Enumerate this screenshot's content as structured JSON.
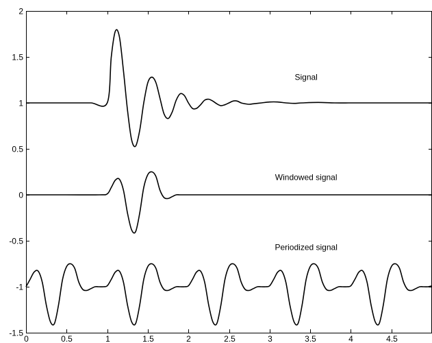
{
  "chart_data": {
    "type": "line",
    "title": "",
    "xlabel": "",
    "ylabel": "",
    "xlim": [
      0,
      5
    ],
    "ylim": [
      -1.5,
      2
    ],
    "grid": false,
    "x_ticks": [
      0,
      0.5,
      1,
      1.5,
      2,
      2.5,
      3,
      3.5,
      4,
      4.5
    ],
    "x_tick_labels": [
      "0",
      "0.5",
      "1",
      "1.5",
      "2",
      "2.5",
      "3",
      "3.5",
      "4",
      "4.5"
    ],
    "y_ticks": [
      -1.5,
      -1,
      -0.5,
      0,
      0.5,
      1,
      1.5,
      2
    ],
    "y_tick_labels": [
      "-1.5",
      "-1",
      "-0.5",
      "0",
      "0.5",
      "1",
      "1.5",
      "2"
    ],
    "annotations": [
      {
        "text": "Signal",
        "x": 3.45,
        "y": 1.25
      },
      {
        "text": "Windowed signal",
        "x": 3.45,
        "y": 0.16
      },
      {
        "text": "Periodized signal",
        "x": 3.45,
        "y": -0.6
      }
    ],
    "series": [
      {
        "x": [
          0,
          0.2,
          0.4,
          0.6,
          0.8,
          1.0,
          1.05,
          1.1,
          1.15,
          1.2,
          1.25,
          1.3,
          1.35,
          1.4,
          1.45,
          1.5,
          1.55,
          1.6,
          1.65,
          1.7,
          1.75,
          1.8,
          1.85,
          1.9,
          1.95,
          2.0,
          2.05,
          2.1,
          2.15,
          2.2,
          2.25,
          2.3,
          2.35,
          2.4,
          2.45,
          2.5,
          2.55,
          2.6,
          2.65,
          2.7,
          2.75,
          2.8,
          2.9,
          3.0,
          3.1,
          3.2,
          3.3,
          3.4,
          3.6,
          3.8,
          4.0,
          4.2,
          4.4,
          4.6,
          4.8,
          5.0
        ],
        "y": [
          1,
          1,
          1,
          1,
          1,
          1,
          1.5,
          1.78,
          1.72,
          1.35,
          0.92,
          0.6,
          0.53,
          0.7,
          1.0,
          1.22,
          1.28,
          1.22,
          1.05,
          0.88,
          0.83,
          0.9,
          1.03,
          1.1,
          1.08,
          1.0,
          0.94,
          0.94,
          0.98,
          1.03,
          1.04,
          1.02,
          0.99,
          0.97,
          0.98,
          1.0,
          1.02,
          1.02,
          1.0,
          0.99,
          0.985,
          0.99,
          1.0,
          1.01,
          1.01,
          1.0,
          0.995,
          1.0,
          1.005,
          1.0,
          1.0,
          1.0,
          1.0,
          1.0,
          1.0,
          1.0
        ]
      },
      {
        "x": [
          0,
          0.5,
          0.9,
          1.0,
          1.05,
          1.1,
          1.15,
          1.2,
          1.25,
          1.3,
          1.35,
          1.4,
          1.45,
          1.5,
          1.55,
          1.6,
          1.65,
          1.7,
          1.75,
          1.8,
          1.85,
          1.9,
          1.95,
          2.0,
          2.5,
          3.0,
          3.5,
          4.0,
          4.5,
          5.0
        ],
        "y": [
          0,
          0,
          0,
          0.01,
          0.08,
          0.16,
          0.17,
          0.05,
          -0.2,
          -0.38,
          -0.4,
          -0.2,
          0.08,
          0.22,
          0.25,
          0.2,
          0.05,
          -0.03,
          -0.04,
          -0.02,
          0.0,
          0.0,
          0.0,
          0.0,
          0,
          0,
          0,
          0,
          0,
          0
        ]
      },
      {
        "x": [
          0,
          0.05,
          0.1,
          0.15,
          0.2,
          0.25,
          0.3,
          0.35,
          0.4,
          0.45,
          0.5,
          0.55,
          0.6,
          0.65,
          0.7,
          0.75,
          0.8,
          0.85,
          0.9,
          0.95,
          1.0,
          1.05,
          1.1,
          1.15,
          1.2,
          1.25,
          1.3,
          1.35,
          1.4,
          1.45,
          1.5,
          1.55,
          1.6,
          1.65,
          1.7,
          1.75,
          1.8,
          1.85,
          1.9,
          1.95,
          2.0,
          2.05,
          2.1,
          2.15,
          2.2,
          2.25,
          2.3,
          2.35,
          2.4,
          2.45,
          2.5,
          2.55,
          2.6,
          2.65,
          2.7,
          2.75,
          2.8,
          2.85,
          2.9,
          2.95,
          3.0,
          3.05,
          3.1,
          3.15,
          3.2,
          3.25,
          3.3,
          3.35,
          3.4,
          3.45,
          3.5,
          3.55,
          3.6,
          3.65,
          3.7,
          3.75,
          3.8,
          3.85,
          3.9,
          3.95,
          4.0,
          4.05,
          4.1,
          4.15,
          4.2,
          4.25,
          4.3,
          4.35,
          4.4,
          4.45,
          4.5,
          4.55,
          4.6,
          4.65,
          4.7,
          4.75,
          4.8,
          4.85,
          4.9,
          4.95,
          5.0
        ],
        "y": [
          -1.0,
          -0.92,
          -0.84,
          -0.83,
          -0.95,
          -1.2,
          -1.38,
          -1.4,
          -1.2,
          -0.92,
          -0.78,
          -0.75,
          -0.8,
          -0.95,
          -1.03,
          -1.04,
          -1.02,
          -1.0,
          -1.0,
          -1.0,
          -0.99,
          -0.92,
          -0.84,
          -0.83,
          -0.95,
          -1.2,
          -1.38,
          -1.4,
          -1.2,
          -0.92,
          -0.78,
          -0.75,
          -0.8,
          -0.95,
          -1.03,
          -1.04,
          -1.02,
          -1.0,
          -1.0,
          -1.0,
          -0.99,
          -0.92,
          -0.84,
          -0.83,
          -0.95,
          -1.2,
          -1.38,
          -1.4,
          -1.2,
          -0.92,
          -0.78,
          -0.75,
          -0.8,
          -0.95,
          -1.03,
          -1.04,
          -1.02,
          -1.0,
          -1.0,
          -1.0,
          -0.99,
          -0.92,
          -0.84,
          -0.83,
          -0.95,
          -1.2,
          -1.38,
          -1.4,
          -1.2,
          -0.92,
          -0.78,
          -0.75,
          -0.8,
          -0.95,
          -1.03,
          -1.04,
          -1.02,
          -1.0,
          -1.0,
          -1.0,
          -0.99,
          -0.92,
          -0.84,
          -0.83,
          -0.95,
          -1.2,
          -1.38,
          -1.4,
          -1.2,
          -0.92,
          -0.78,
          -0.75,
          -0.8,
          -0.95,
          -1.03,
          -1.04,
          -1.02,
          -1.0,
          -1.0,
          -1.0,
          -0.99
        ]
      }
    ]
  }
}
